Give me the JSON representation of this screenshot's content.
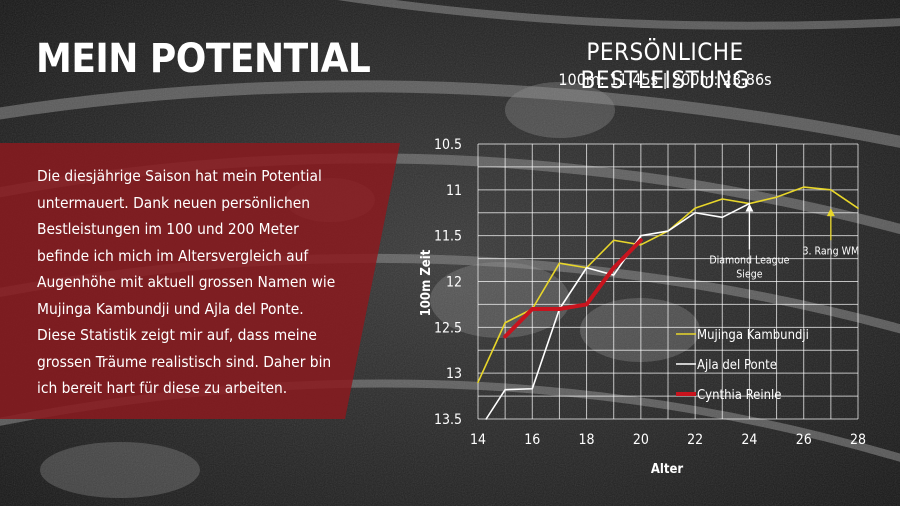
{
  "slide": {
    "title": "MEIN POTENTIAL",
    "body": "Die diesjährige Saison hat mein Potential untermauert. Dank neuen persönlichen Bestleistungen im 100 und 200 Meter befinde ich mich im Altersvergleich auf Augenhöhe mit aktuell grossen Namen wie Mujinga Kambundji und Ajla del Ponte. Diese Statistik zeigt mir auf, dass meine grossen Träume realistisch sind. Daher bin ich bereit hart für diese zu arbeiten.",
    "accent_color": "#8b1a1f"
  },
  "chart_header": {
    "title": "PERSÖNLICHE BESTLEISTUNG",
    "subtitle": "100m: 11.45s | 200m: 23.86s"
  },
  "chart_data": {
    "type": "line",
    "xlabel": "Alter",
    "ylabel": "100m Zeit",
    "xlim": [
      14,
      28
    ],
    "ylim": [
      10.5,
      13.5
    ],
    "y_inverted": true,
    "grid": true,
    "x_ticks": [
      "14",
      "16",
      "18",
      "20",
      "22",
      "24",
      "26",
      "28"
    ],
    "y_ticks": [
      "10.5",
      "11",
      "11.5",
      "12",
      "12.5",
      "13",
      "13.5"
    ],
    "legend_position": "right-bottom",
    "series": [
      {
        "name": "Mujinga Kambundji",
        "color": "#e8d62a",
        "x": [
          14,
          15,
          16,
          17,
          18,
          19,
          20,
          21,
          22,
          23,
          24,
          25,
          26,
          27,
          28
        ],
        "y": [
          13.1,
          12.45,
          12.3,
          11.8,
          11.85,
          11.55,
          11.6,
          11.45,
          11.2,
          11.1,
          11.15,
          11.08,
          10.97,
          11.0,
          11.2
        ]
      },
      {
        "name": "Ajla del Ponte",
        "color": "#ffffff",
        "x": [
          14.3,
          15,
          16,
          17,
          18,
          19,
          20,
          21,
          22,
          23,
          24
        ],
        "y": [
          13.5,
          13.18,
          13.17,
          12.3,
          11.85,
          11.93,
          11.5,
          11.45,
          11.25,
          11.3,
          11.15
        ]
      },
      {
        "name": "Cynthia Reinle",
        "color": "#c8141e",
        "x": [
          15,
          16,
          17,
          18,
          19,
          20
        ],
        "y": [
          12.6,
          12.3,
          12.3,
          12.25,
          11.85,
          11.55
        ]
      }
    ],
    "annotations": [
      {
        "text_line1": "Diamond League",
        "text_line2": "Siege",
        "x": 24,
        "y_from": 11.65,
        "y_to": 11.15,
        "color": "#ffffff"
      },
      {
        "text_line1": "3. Rang WM",
        "text_line2": "",
        "x": 27,
        "y_from": 11.55,
        "y_to": 11.2,
        "color": "#e8d62a"
      }
    ]
  }
}
